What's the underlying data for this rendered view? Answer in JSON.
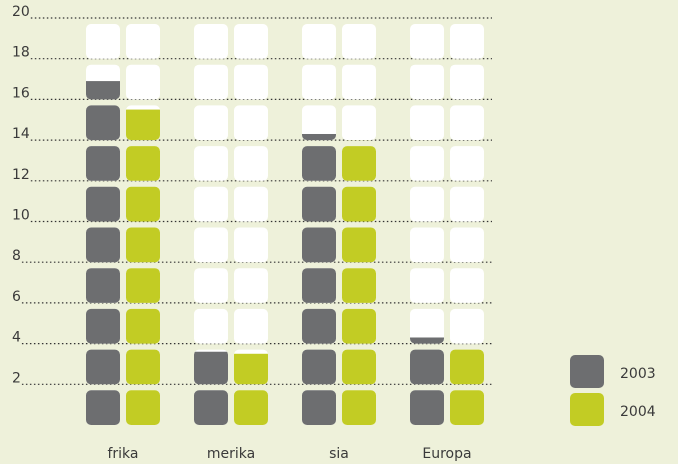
{
  "chart_data": {
    "type": "tile-bar",
    "categories": [
      "frika",
      "merika",
      "sia",
      "Europa"
    ],
    "series": [
      {
        "name": "2003",
        "color": "#6d6e70",
        "values": [
          16.9,
          3.6,
          14.3,
          4.3
        ]
      },
      {
        "name": "2004",
        "color": "#c2cc24",
        "values": [
          15.5,
          3.5,
          14,
          3.8
        ]
      }
    ],
    "ylim": [
      0,
      20
    ],
    "yticks": [
      2,
      4,
      6,
      8,
      10,
      12,
      14,
      16,
      18,
      20
    ],
    "grid": true,
    "legend": "bottom-right"
  }
}
